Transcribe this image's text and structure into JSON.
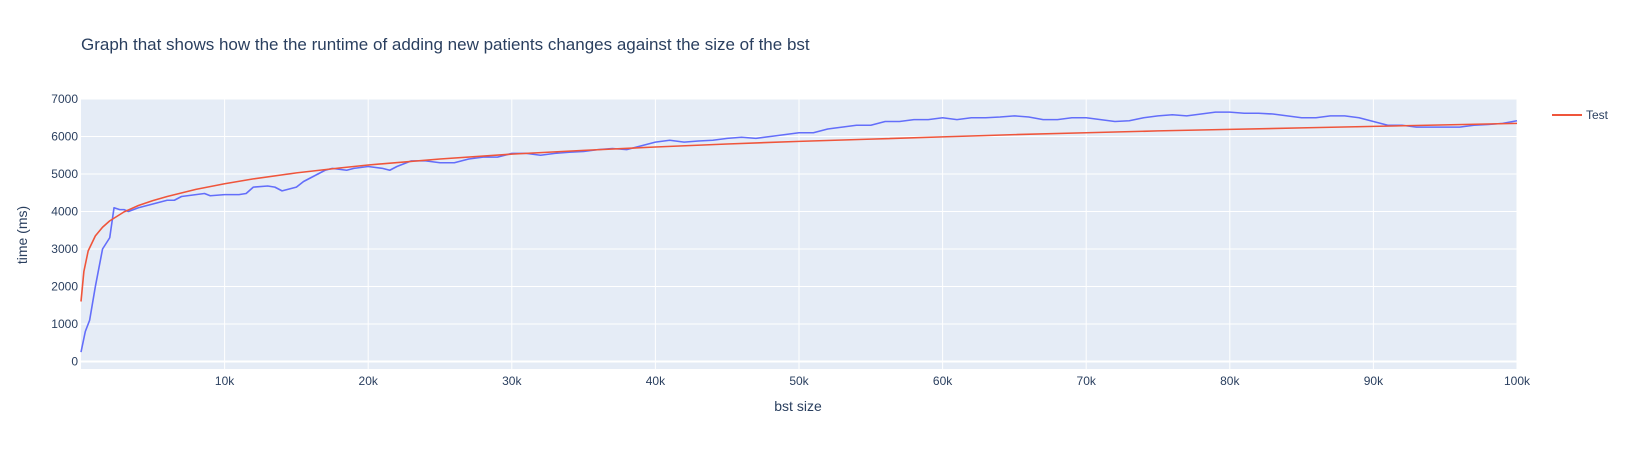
{
  "chart_data": {
    "type": "line",
    "title": "Graph that shows how the the runtime of adding new patients changes against the size of the bst",
    "xlabel": "bst size",
    "ylabel": "time (ms)",
    "xlim": [
      0,
      100000
    ],
    "ylim": [
      -200,
      7000
    ],
    "x_ticks": [
      10000,
      20000,
      30000,
      40000,
      50000,
      60000,
      70000,
      80000,
      90000,
      100000
    ],
    "x_tick_labels": [
      "10k",
      "20k",
      "30k",
      "40k",
      "50k",
      "60k",
      "70k",
      "80k",
      "90k",
      "100k"
    ],
    "y_ticks": [
      0,
      1000,
      2000,
      3000,
      4000,
      5000,
      6000,
      7000
    ],
    "y_tick_labels": [
      "0",
      "1000",
      "2000",
      "3000",
      "4000",
      "5000",
      "6000",
      "7000"
    ],
    "grid": true,
    "legend_position": "top-right",
    "series": [
      {
        "color": "#636efa",
        "x": [
          0,
          300,
          600,
          1000,
          1500,
          2000,
          2300,
          2700,
          3000,
          3300,
          4000,
          5000,
          6000,
          6500,
          7000,
          8000,
          8600,
          9000,
          10000,
          11000,
          11500,
          12000,
          13000,
          13500,
          14000,
          14500,
          15000,
          15500,
          16000,
          17000,
          17500,
          18500,
          19000,
          20000,
          21000,
          21500,
          22000,
          23000,
          24000,
          25000,
          26000,
          27000,
          28000,
          29000,
          30000,
          31000,
          32000,
          33000,
          34000,
          35000,
          36000,
          37000,
          38000,
          39000,
          40000,
          41000,
          42000,
          43000,
          44000,
          45000,
          46000,
          47000,
          48000,
          49000,
          50000,
          51000,
          52000,
          53000,
          54000,
          55000,
          56000,
          57000,
          58000,
          59000,
          60000,
          61000,
          62000,
          63000,
          64000,
          65000,
          66000,
          67000,
          68000,
          69000,
          70000,
          71000,
          72000,
          73000,
          74000,
          75000,
          76000,
          77000,
          78000,
          79000,
          80000,
          81000,
          82000,
          83000,
          84000,
          85000,
          86000,
          87000,
          88000,
          89000,
          90000,
          91000,
          92000,
          93000,
          94000,
          95000,
          96000,
          97000,
          98000,
          99000,
          100000
        ],
        "y": [
          250,
          800,
          1100,
          2000,
          3000,
          3300,
          4100,
          4050,
          4050,
          4000,
          4100,
          4200,
          4300,
          4300,
          4400,
          4450,
          4480,
          4420,
          4450,
          4450,
          4480,
          4650,
          4680,
          4650,
          4550,
          4600,
          4650,
          4800,
          4900,
          5100,
          5150,
          5100,
          5150,
          5200,
          5150,
          5100,
          5200,
          5350,
          5350,
          5300,
          5300,
          5400,
          5450,
          5450,
          5550,
          5550,
          5500,
          5550,
          5580,
          5600,
          5650,
          5680,
          5650,
          5750,
          5850,
          5900,
          5850,
          5880,
          5900,
          5950,
          5980,
          5950,
          6000,
          6050,
          6100,
          6100,
          6200,
          6250,
          6300,
          6300,
          6400,
          6400,
          6450,
          6450,
          6500,
          6450,
          6500,
          6500,
          6520,
          6550,
          6520,
          6450,
          6450,
          6500,
          6500,
          6450,
          6400,
          6420,
          6500,
          6550,
          6580,
          6550,
          6600,
          6650,
          6650,
          6620,
          6620,
          6600,
          6550,
          6500,
          6500,
          6550,
          6550,
          6500,
          6400,
          6300,
          6300,
          6250,
          6250,
          6250,
          6250,
          6300,
          6320,
          6350,
          6420
        ]
      },
      {
        "name": "Test",
        "color": "#ef553b",
        "x": [
          0,
          200,
          500,
          1000,
          1500,
          2000,
          3000,
          4000,
          5000,
          6000,
          8000,
          10000,
          12000,
          15000,
          18000,
          20000,
          25000,
          30000,
          35000,
          40000,
          45000,
          50000,
          55000,
          60000,
          65000,
          70000,
          75000,
          80000,
          85000,
          90000,
          95000,
          100000
        ],
        "y": [
          1600,
          2400,
          2950,
          3350,
          3580,
          3750,
          3990,
          4160,
          4290,
          4400,
          4590,
          4740,
          4870,
          5030,
          5160,
          5240,
          5400,
          5530,
          5630,
          5720,
          5800,
          5870,
          5930,
          5990,
          6050,
          6100,
          6150,
          6190,
          6230,
          6270,
          6310,
          6350
        ]
      }
    ]
  }
}
